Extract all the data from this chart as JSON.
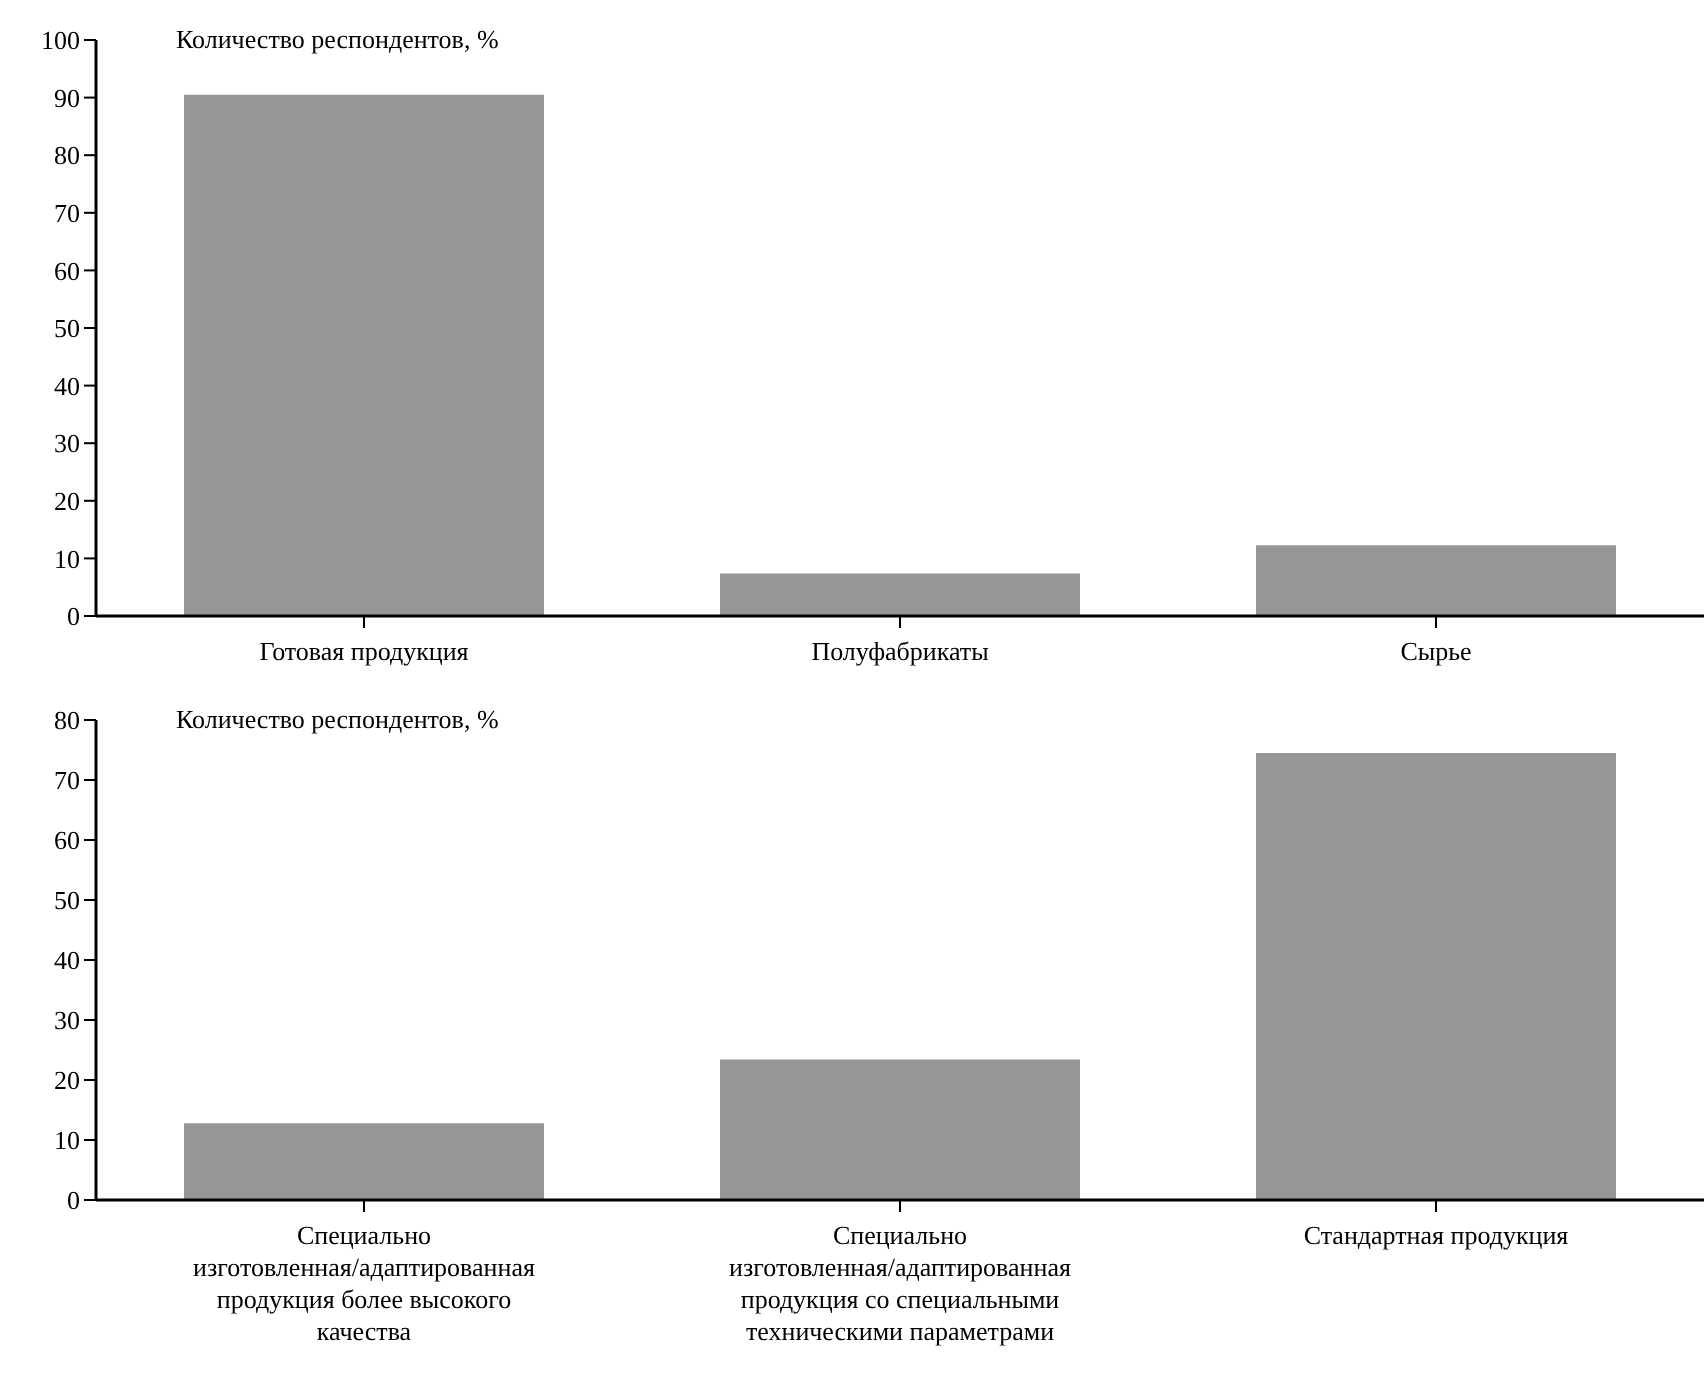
{
  "chart_data": [
    {
      "type": "bar",
      "ylabel": "Количество респондентов, %",
      "categories": [
        "Готовая продукция",
        "Полуфабрикаты",
        "Сырье"
      ],
      "values": [
        90.5,
        7.4,
        12.3
      ],
      "color": "#969696",
      "ylim": [
        0,
        100
      ],
      "yticks": [
        0,
        10,
        20,
        30,
        40,
        50,
        60,
        70,
        80,
        90,
        100
      ],
      "grid": false,
      "legend": false
    },
    {
      "type": "bar",
      "ylabel": "Количество респондентов, %",
      "categories": [
        "Специально изготовленная/адаптированная продукция более высокого качества",
        "Специально изготовленная/адаптированная продукция со специальными техническими параметрами",
        "Стандартная продукция"
      ],
      "values": [
        12.8,
        23.4,
        74.5
      ],
      "color": "#969696",
      "ylim": [
        0,
        80
      ],
      "yticks": [
        0,
        10,
        20,
        30,
        40,
        50,
        60,
        70,
        80
      ],
      "grid": false,
      "legend": false
    }
  ]
}
